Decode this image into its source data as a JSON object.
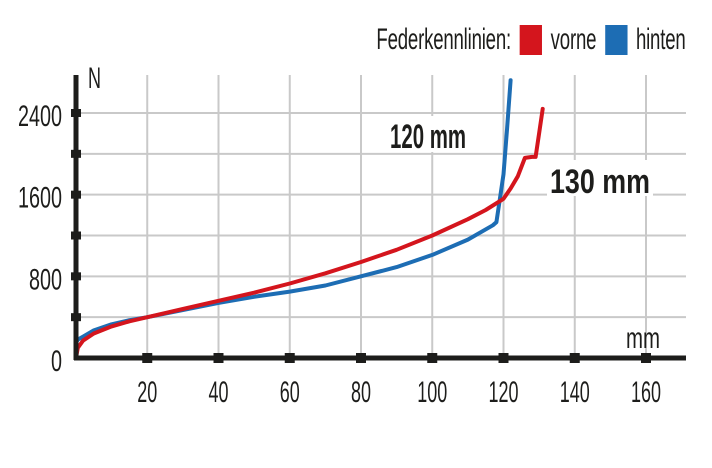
{
  "chart_data": {
    "type": "line",
    "title": "",
    "legend": {
      "title": "Federkennlinien:",
      "position": "top-right",
      "entries": [
        {
          "name": "vorne",
          "color": "#d4151d"
        },
        {
          "name": "hinten",
          "color": "#1d6db4"
        }
      ]
    },
    "xlabel": "mm",
    "ylabel": "N",
    "xlim": [
      0,
      170
    ],
    "ylim": [
      0,
      2800
    ],
    "xticks": [
      20,
      40,
      60,
      80,
      100,
      120,
      140,
      160
    ],
    "xtick_labels": [
      "20",
      "40",
      "60",
      "80",
      "100",
      "120",
      "140",
      "160"
    ],
    "yticks": [
      0,
      400,
      800,
      1200,
      1600,
      2000,
      2400
    ],
    "ytick_labels": [
      "0",
      "",
      "800",
      "",
      "1600",
      "",
      "2400"
    ],
    "grid": true,
    "annotations": [
      {
        "text": "120 mm",
        "series": "hinten",
        "x": 90,
        "y": 2150
      },
      {
        "text": "130 mm",
        "series": "vorne",
        "x": 135,
        "y": 1720
      }
    ],
    "series": [
      {
        "name": "vorne",
        "color": "#d4151d",
        "x": [
          0,
          0.5,
          2,
          5,
          10,
          15,
          20,
          30,
          40,
          50,
          60,
          70,
          80,
          90,
          100,
          110,
          115,
          120,
          122,
          124,
          126,
          128,
          129,
          130,
          131
        ],
        "y": [
          0,
          100,
          170,
          240,
          310,
          360,
          400,
          480,
          560,
          640,
          730,
          830,
          940,
          1060,
          1200,
          1360,
          1450,
          1560,
          1660,
          1780,
          1960,
          1970,
          1970,
          2200,
          2440
        ]
      },
      {
        "name": "hinten",
        "color": "#1d6db4",
        "x": [
          0,
          0.5,
          2,
          5,
          10,
          15,
          20,
          30,
          40,
          50,
          60,
          70,
          80,
          90,
          100,
          110,
          117,
          118,
          119,
          120,
          121,
          122
        ],
        "y": [
          150,
          180,
          210,
          270,
          330,
          370,
          400,
          470,
          540,
          600,
          650,
          710,
          800,
          890,
          1010,
          1160,
          1300,
          1330,
          1560,
          1800,
          2250,
          2720
        ]
      }
    ]
  }
}
